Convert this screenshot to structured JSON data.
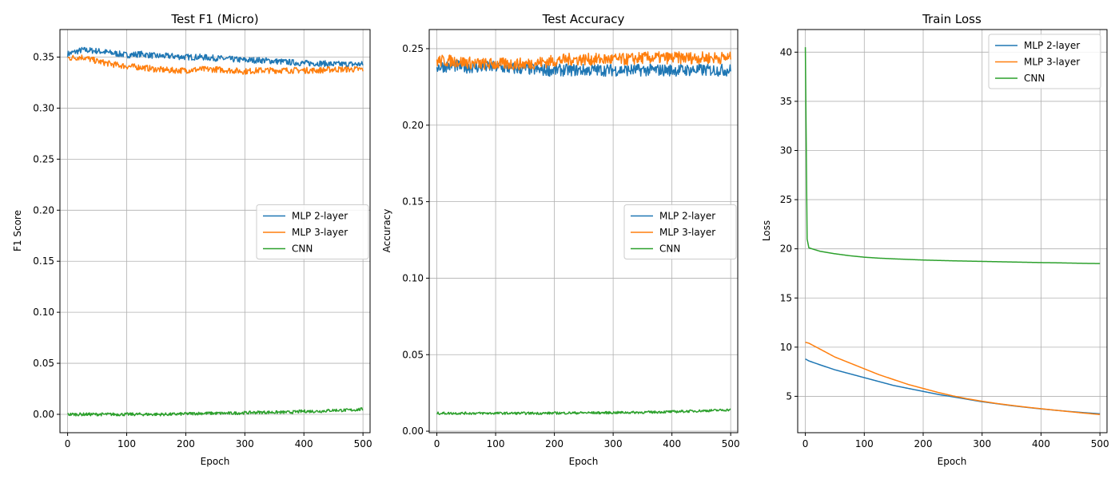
{
  "colors": {
    "MLP 2-layer": "#1f77b4",
    "MLP 3-layer": "#ff7f0e",
    "CNN": "#2ca02c"
  },
  "chart_data": [
    {
      "type": "line",
      "title": "Test F1 (Micro)",
      "xlabel": "Epoch",
      "ylabel": "F1 Score",
      "xlim": [
        -13,
        512
      ],
      "ylim": [
        -0.018,
        0.377
      ],
      "xticks": [
        0,
        100,
        200,
        300,
        400,
        500
      ],
      "xtick_labels": [
        "0",
        "100",
        "200",
        "300",
        "400",
        "500"
      ],
      "yticks": [
        0.0,
        0.05,
        0.1,
        0.15,
        0.2,
        0.25,
        0.3,
        0.35
      ],
      "ytick_labels": [
        "0.00",
        "0.05",
        "0.10",
        "0.15",
        "0.20",
        "0.25",
        "0.30",
        "0.35"
      ],
      "grid": true,
      "legend": "center-right",
      "x": [
        0,
        25,
        50,
        75,
        100,
        125,
        150,
        175,
        200,
        225,
        250,
        275,
        300,
        325,
        350,
        375,
        400,
        425,
        450,
        475,
        500
      ],
      "series": [
        {
          "name": "MLP 2-layer",
          "values": [
            0.353,
            0.357,
            0.356,
            0.354,
            0.352,
            0.353,
            0.351,
            0.351,
            0.35,
            0.35,
            0.349,
            0.348,
            0.347,
            0.347,
            0.346,
            0.345,
            0.344,
            0.344,
            0.343,
            0.343,
            0.343
          ],
          "noise": 0.003
        },
        {
          "name": "MLP 3-layer",
          "values": [
            0.349,
            0.35,
            0.346,
            0.343,
            0.341,
            0.34,
            0.338,
            0.337,
            0.337,
            0.338,
            0.338,
            0.337,
            0.336,
            0.337,
            0.337,
            0.337,
            0.337,
            0.337,
            0.338,
            0.338,
            0.338
          ],
          "noise": 0.003
        },
        {
          "name": "CNN",
          "values": [
            0.0,
            0.0,
            0.0,
            0.0,
            0.0,
            0.0,
            0.0,
            0.0,
            0.0005,
            0.001,
            0.001,
            0.001,
            0.0015,
            0.002,
            0.002,
            0.002,
            0.003,
            0.003,
            0.004,
            0.004,
            0.005
          ],
          "noise": 0.0015
        }
      ]
    },
    {
      "type": "line",
      "title": "Test Accuracy",
      "xlabel": "Epoch",
      "ylabel": "Accuracy",
      "xlim": [
        -13,
        512
      ],
      "ylim": [
        -0.001,
        0.2625
      ],
      "xticks": [
        0,
        100,
        200,
        300,
        400,
        500
      ],
      "xtick_labels": [
        "0",
        "100",
        "200",
        "300",
        "400",
        "500"
      ],
      "yticks": [
        0.0,
        0.05,
        0.1,
        0.15,
        0.2,
        0.25
      ],
      "ytick_labels": [
        "0.00",
        "0.05",
        "0.10",
        "0.15",
        "0.20",
        "0.25"
      ],
      "grid": true,
      "legend": "center-right",
      "x": [
        0,
        25,
        50,
        75,
        100,
        125,
        150,
        175,
        200,
        225,
        250,
        275,
        300,
        325,
        350,
        375,
        400,
        425,
        450,
        475,
        500
      ],
      "series": [
        {
          "name": "MLP 2-layer",
          "values": [
            0.238,
            0.239,
            0.238,
            0.238,
            0.238,
            0.237,
            0.237,
            0.236,
            0.236,
            0.236,
            0.236,
            0.236,
            0.236,
            0.236,
            0.236,
            0.236,
            0.236,
            0.236,
            0.236,
            0.236,
            0.236
          ],
          "noise": 0.004
        },
        {
          "name": "MLP 3-layer",
          "values": [
            0.242,
            0.242,
            0.241,
            0.24,
            0.24,
            0.24,
            0.24,
            0.241,
            0.242,
            0.243,
            0.243,
            0.243,
            0.243,
            0.243,
            0.244,
            0.244,
            0.244,
            0.244,
            0.244,
            0.244,
            0.244
          ],
          "noise": 0.004
        },
        {
          "name": "CNN",
          "values": [
            0.0117,
            0.0117,
            0.0117,
            0.0117,
            0.0117,
            0.0117,
            0.0117,
            0.0117,
            0.0118,
            0.0119,
            0.012,
            0.012,
            0.0121,
            0.0122,
            0.0123,
            0.0125,
            0.0127,
            0.013,
            0.0133,
            0.0136,
            0.014
          ],
          "noise": 0.0008
        }
      ]
    },
    {
      "type": "line",
      "title": "Train Loss",
      "xlabel": "Epoch",
      "ylabel": "Loss",
      "xlim": [
        -13,
        512
      ],
      "ylim": [
        1.3,
        42.3
      ],
      "xticks": [
        0,
        100,
        200,
        300,
        400,
        500
      ],
      "xtick_labels": [
        "0",
        "100",
        "200",
        "300",
        "400",
        "500"
      ],
      "yticks": [
        5,
        10,
        15,
        20,
        25,
        30,
        35,
        40
      ],
      "ytick_labels": [
        "5",
        "10",
        "15",
        "20",
        "25",
        "30",
        "35",
        "40"
      ],
      "grid": true,
      "legend": "top-right",
      "x": [
        0,
        3,
        6,
        25,
        50,
        75,
        100,
        125,
        150,
        175,
        200,
        225,
        250,
        275,
        300,
        325,
        350,
        375,
        400,
        425,
        450,
        475,
        500
      ],
      "series": [
        {
          "name": "MLP 2-layer",
          "values": [
            8.8,
            8.7,
            8.6,
            8.2,
            7.7,
            7.3,
            6.9,
            6.5,
            6.1,
            5.8,
            5.5,
            5.2,
            4.95,
            4.7,
            4.45,
            4.25,
            4.05,
            3.88,
            3.72,
            3.58,
            3.45,
            3.33,
            3.22
          ],
          "noise": 0
        },
        {
          "name": "MLP 3-layer",
          "values": [
            10.5,
            10.45,
            10.4,
            9.8,
            9.0,
            8.4,
            7.8,
            7.2,
            6.7,
            6.2,
            5.8,
            5.4,
            5.05,
            4.75,
            4.5,
            4.27,
            4.08,
            3.9,
            3.74,
            3.58,
            3.43,
            3.28,
            3.15
          ],
          "noise": 0
        },
        {
          "name": "CNN",
          "values": [
            40.5,
            21.0,
            20.1,
            19.75,
            19.5,
            19.3,
            19.15,
            19.05,
            18.98,
            18.92,
            18.86,
            18.82,
            18.78,
            18.75,
            18.72,
            18.69,
            18.66,
            18.63,
            18.6,
            18.58,
            18.55,
            18.52,
            18.5
          ],
          "noise": 0
        }
      ]
    }
  ]
}
